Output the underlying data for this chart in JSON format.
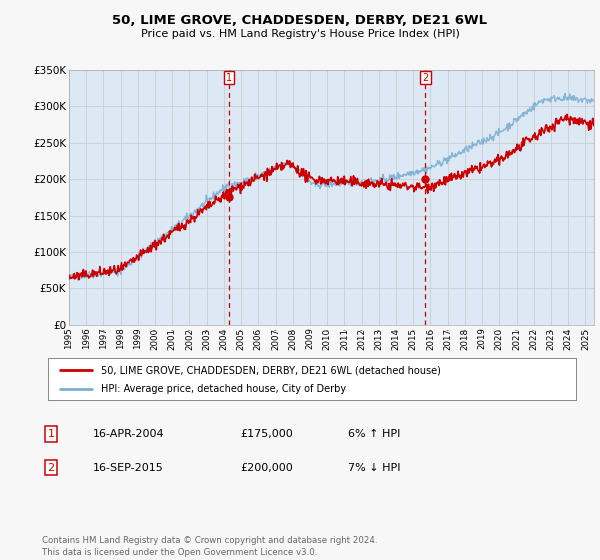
{
  "title": "50, LIME GROVE, CHADDESDEN, DERBY, DE21 6WL",
  "subtitle": "Price paid vs. HM Land Registry's House Price Index (HPI)",
  "background_color": "#f7f7f7",
  "plot_bg_color": "#dde8f5",
  "ylim": [
    0,
    350000
  ],
  "yticks": [
    0,
    50000,
    100000,
    150000,
    200000,
    250000,
    300000,
    350000
  ],
  "xlim_start": 1995.0,
  "xlim_end": 2025.5,
  "sale1_year": 2004.29,
  "sale1_price": 175000,
  "sale2_year": 2015.71,
  "sale2_price": 200000,
  "legend_line1": "50, LIME GROVE, CHADDESDEN, DERBY, DE21 6WL (detached house)",
  "legend_line2": "HPI: Average price, detached house, City of Derby",
  "table_row1": [
    "1",
    "16-APR-2004",
    "£175,000",
    "6% ↑ HPI"
  ],
  "table_row2": [
    "2",
    "16-SEP-2015",
    "£200,000",
    "7% ↓ HPI"
  ],
  "footnote": "Contains HM Land Registry data © Crown copyright and database right 2024.\nThis data is licensed under the Open Government Licence v3.0.",
  "hpi_color": "#7ab0d4",
  "price_color": "#cc0000",
  "vline_color": "#cc0000",
  "grid_color": "#cccccc",
  "xtick_years": [
    1995,
    1996,
    1997,
    1998,
    1999,
    2000,
    2001,
    2002,
    2003,
    2004,
    2005,
    2006,
    2007,
    2008,
    2009,
    2010,
    2011,
    2012,
    2013,
    2014,
    2015,
    2016,
    2017,
    2018,
    2019,
    2020,
    2021,
    2022,
    2023,
    2024,
    2025
  ]
}
